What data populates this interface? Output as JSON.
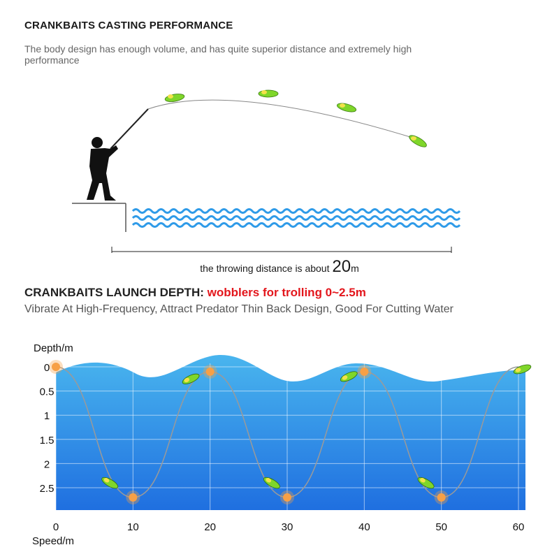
{
  "casting": {
    "title": "CRANKBAITS CASTING PERFORMANCE",
    "description": "The body design has enough volume, and has quite superior distance and extremely high performance",
    "distance_prefix": "the throwing distance is about",
    "distance_value": "20",
    "distance_unit": "m"
  },
  "depth": {
    "title": "CRANKBAITS LAUNCH DEPTH:",
    "title_highlight": "wobblers for trolling 0~2.5m",
    "description": "Vibrate At High-Frequency, Attract Predator Thin Back Design, Good For Cutting Water"
  },
  "colors": {
    "water_top": "#49b5ee",
    "water_bottom": "#1f6fe0",
    "wave": "#2f9be8",
    "highlight_red": "#e3161c",
    "marker": "#f7a046",
    "lure": "#7fd62a"
  },
  "chart_data": {
    "type": "line",
    "xlabel": "Speed/m",
    "ylabel": "Depth/m",
    "x_ticks": [
      "0",
      "10",
      "20",
      "30",
      "40",
      "50",
      "60"
    ],
    "y_ticks": [
      "0",
      "0.5",
      "1",
      "1.5",
      "2",
      "2.5"
    ],
    "xlim": [
      0,
      60
    ],
    "ylim": [
      0,
      2.5
    ],
    "y_inverted": true,
    "grid": true,
    "series": [
      {
        "x": [
          0,
          10,
          20,
          30,
          40,
          50,
          60
        ],
        "y": [
          0,
          2.7,
          0.1,
          2.7,
          0.1,
          2.7,
          0
        ]
      }
    ],
    "markers": [
      {
        "x": 0,
        "y": 0
      },
      {
        "x": 10,
        "y": 2.7
      },
      {
        "x": 20,
        "y": 0.1
      },
      {
        "x": 30,
        "y": 2.7
      },
      {
        "x": 40,
        "y": 0.1
      },
      {
        "x": 50,
        "y": 2.7
      }
    ]
  }
}
